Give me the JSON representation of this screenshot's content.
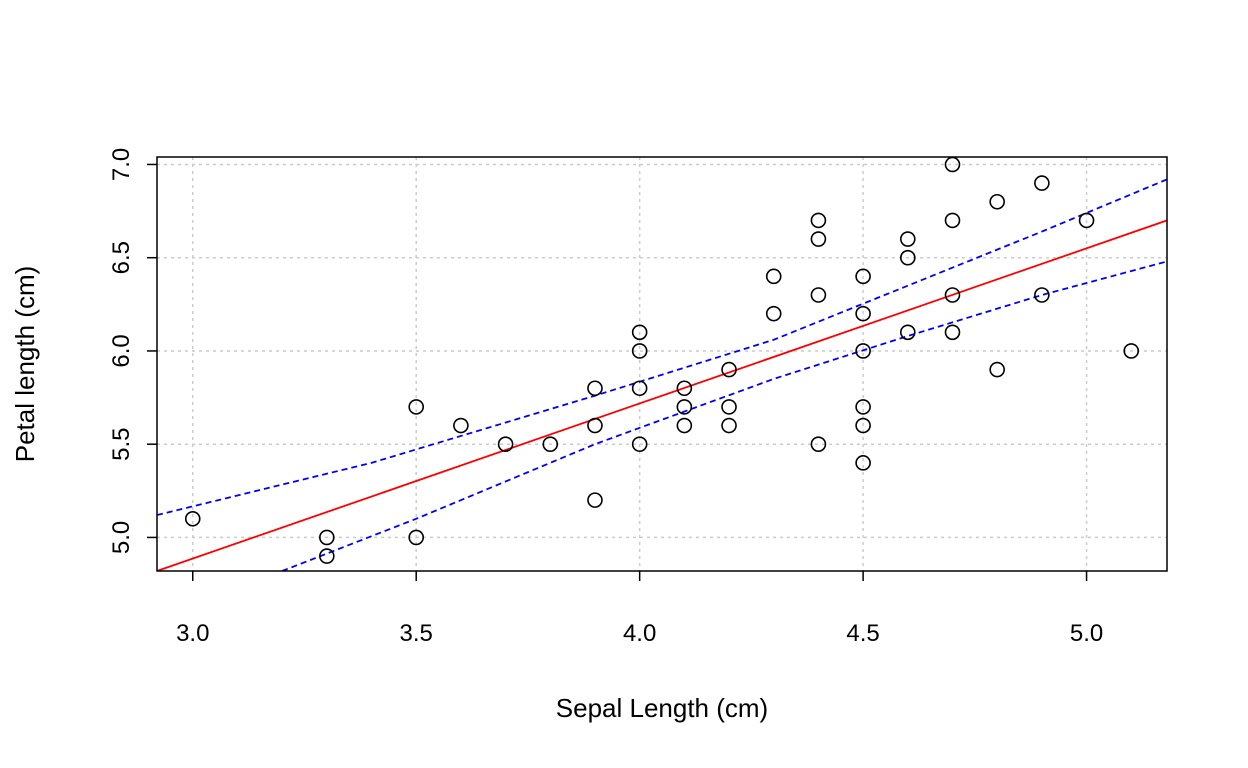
{
  "chart_data": {
    "type": "scatter",
    "title": "",
    "xlabel": "Sepal Length (cm)",
    "ylabel": "Petal length (cm)",
    "xlim": [
      2.92,
      5.18
    ],
    "ylim": [
      4.82,
      7.04
    ],
    "x_ticks": [
      "3.0",
      "3.5",
      "4.0",
      "4.5",
      "5.0"
    ],
    "y_ticks": [
      "5.0",
      "5.5",
      "6.0",
      "6.5",
      "7.0"
    ],
    "grid": true,
    "points": [
      [
        3.0,
        5.1
      ],
      [
        3.3,
        5.0
      ],
      [
        3.3,
        4.9
      ],
      [
        3.5,
        5.7
      ],
      [
        3.5,
        5.0
      ],
      [
        3.6,
        5.6
      ],
      [
        3.7,
        5.5
      ],
      [
        3.8,
        5.5
      ],
      [
        3.9,
        5.8
      ],
      [
        3.9,
        5.6
      ],
      [
        3.9,
        5.2
      ],
      [
        4.0,
        6.1
      ],
      [
        4.0,
        6.0
      ],
      [
        4.0,
        5.8
      ],
      [
        4.0,
        5.5
      ],
      [
        4.1,
        5.8
      ],
      [
        4.1,
        5.7
      ],
      [
        4.1,
        5.6
      ],
      [
        4.2,
        5.9
      ],
      [
        4.2,
        5.7
      ],
      [
        4.2,
        5.6
      ],
      [
        4.3,
        6.4
      ],
      [
        4.3,
        6.2
      ],
      [
        4.4,
        6.7
      ],
      [
        4.4,
        6.6
      ],
      [
        4.4,
        6.3
      ],
      [
        4.4,
        5.5
      ],
      [
        4.5,
        6.4
      ],
      [
        4.5,
        6.2
      ],
      [
        4.5,
        6.0
      ],
      [
        4.5,
        5.7
      ],
      [
        4.5,
        5.6
      ],
      [
        4.5,
        5.4
      ],
      [
        4.6,
        6.6
      ],
      [
        4.6,
        6.5
      ],
      [
        4.6,
        6.1
      ],
      [
        4.7,
        7.0
      ],
      [
        4.7,
        6.7
      ],
      [
        4.7,
        6.3
      ],
      [
        4.7,
        6.1
      ],
      [
        4.8,
        6.8
      ],
      [
        4.8,
        5.9
      ],
      [
        4.9,
        6.9
      ],
      [
        4.9,
        6.3
      ],
      [
        5.0,
        6.7
      ],
      [
        5.1,
        6.0
      ]
    ],
    "regression_line": {
      "x": [
        2.92,
        5.18
      ],
      "y": [
        4.82,
        6.7
      ],
      "color": "#ff0000"
    },
    "confidence_upper": {
      "x": [
        2.92,
        3.4,
        3.9,
        4.3,
        4.6,
        4.9,
        5.18
      ],
      "y": [
        5.12,
        5.4,
        5.76,
        6.06,
        6.35,
        6.64,
        6.92
      ],
      "color": "#0000ff"
    },
    "confidence_lower": {
      "x": [
        3.2,
        3.5,
        3.9,
        4.3,
        4.6,
        4.9,
        5.18
      ],
      "y": [
        4.82,
        5.1,
        5.5,
        5.85,
        6.08,
        6.3,
        6.48
      ],
      "color": "#0000ff"
    }
  }
}
